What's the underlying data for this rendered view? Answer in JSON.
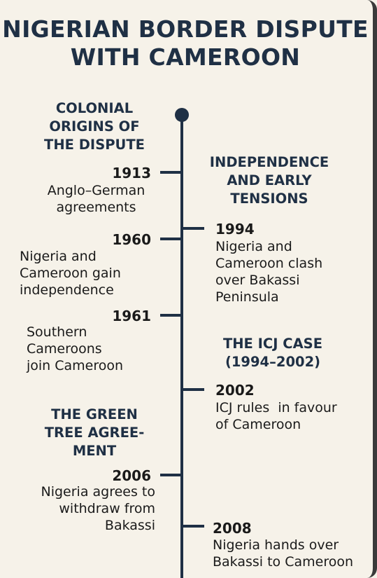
{
  "title": [
    "NIGERIAN BORDER DISPUTE",
    "WITH CAMEROON"
  ],
  "sections": [
    {
      "lines": [
        "COLONIAL",
        "ORIGINS OF",
        "THE DISPUTE"
      ]
    },
    {
      "lines": [
        "INDEPENDENCE",
        "AND EARLY",
        "TENSIONS"
      ]
    },
    {
      "lines": [
        "THE ICJ CASE",
        "(1994–2002)"
      ]
    },
    {
      "lines": [
        "THE GREEN",
        "TREE AGREE-",
        "MENT"
      ]
    }
  ],
  "events": [
    {
      "year": "1913",
      "lines": [
        "Anglo–German",
        "agreements"
      ]
    },
    {
      "year": "1960",
      "lines": [
        "Nigeria and",
        "Cameroon gain",
        "independence"
      ]
    },
    {
      "year": "1961",
      "lines": [
        "Southern",
        "Cameroons",
        "join Cameroon"
      ]
    },
    {
      "year": "1994",
      "lines": [
        "Nigeria and",
        "Cameroon clash",
        "over Bakassi",
        "Peninsula"
      ]
    },
    {
      "year": "2002",
      "lines": [
        "ICJ rules  in favour",
        "of Cameroon"
      ]
    },
    {
      "year": "2006",
      "lines": [
        "Nigeria agrees to",
        "withdraw from",
        "Bakassi"
      ]
    },
    {
      "year": "2008",
      "lines": [
        "Nigeria hands over",
        "Bakassi to Cameroon"
      ]
    }
  ],
  "colors": {
    "background": "#f6f2e9",
    "accent": "#1f3045"
  }
}
